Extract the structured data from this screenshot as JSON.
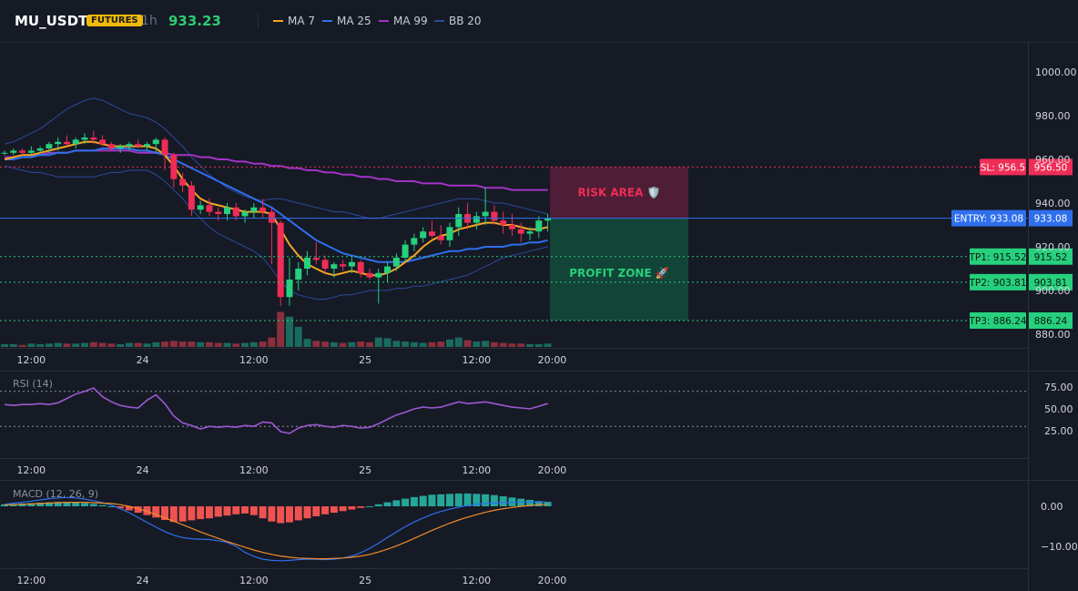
{
  "header": {
    "symbol": "MU_USDT",
    "badge": "FUTURES",
    "timeframe": "1h",
    "last_price": "933.23",
    "legend": [
      {
        "label": "MA 7",
        "color": "#f5a623"
      },
      {
        "label": "MA 25",
        "color": "#2f6fed"
      },
      {
        "label": "MA 99",
        "color": "#a234c4"
      },
      {
        "label": "BB 20",
        "color": "#2b4a9c"
      }
    ]
  },
  "colors": {
    "up": "#26d07c",
    "down": "#ef2d56",
    "vol_up": "#1a6b5e",
    "vol_down": "#8a2f3c",
    "entry": "#2f6fed",
    "sl": "#ef2d56",
    "tp": "#26d07c"
  },
  "levels": {
    "sl": {
      "label": "SL: 956.5",
      "value_text": "956.50"
    },
    "entry": {
      "label": "ENTRY: 933.08",
      "value_text": "933.08"
    },
    "tp1": {
      "label": "TP1: 915.52",
      "value_text": "915.52"
    },
    "tp2": {
      "label": "TP2: 903.81",
      "value_text": "903.81"
    },
    "tp3": {
      "label": "TP3: 886.24",
      "value_text": "886.24"
    }
  },
  "zones": {
    "risk_label": "RISK AREA 🛡️",
    "profit_label": "PROFIT ZONE 🚀"
  },
  "price_axis": [
    "1000.00",
    "980.00",
    "960.00",
    "940.00",
    "920.00",
    "900.00",
    "880.00"
  ],
  "time_axis": [
    "12:00",
    "24",
    "12:00",
    "25",
    "12:00",
    "20:00"
  ],
  "rsi": {
    "label": "RSI (14)",
    "axis": [
      "75.00",
      "50.00",
      "25.00"
    ]
  },
  "macd": {
    "label": "MACD (12, 26, 9)",
    "axis": [
      "0.00",
      "−10.00"
    ]
  },
  "chart_data": [
    {
      "type": "candlestick",
      "title": "MU_USDT 1h",
      "ylim": [
        876,
        1004
      ],
      "x_ticks": [
        "12:00",
        "24",
        "12:00",
        "25",
        "12:00",
        "20:00"
      ],
      "candles": [
        [
          963,
          964,
          962,
          963
        ],
        [
          963,
          965,
          962,
          964
        ],
        [
          964,
          965,
          962,
          963
        ],
        [
          963,
          966,
          962,
          964
        ],
        [
          964,
          966,
          963,
          965
        ],
        [
          965,
          968,
          963,
          967
        ],
        [
          967,
          970,
          964,
          968
        ],
        [
          968,
          971,
          966,
          967
        ],
        [
          967,
          970,
          965,
          969
        ],
        [
          969,
          972,
          967,
          970
        ],
        [
          970,
          973,
          967,
          969
        ],
        [
          969,
          971,
          966,
          967
        ],
        [
          967,
          968,
          964,
          965
        ],
        [
          965,
          967,
          963,
          966
        ],
        [
          966,
          968,
          964,
          967
        ],
        [
          967,
          969,
          965,
          966
        ],
        [
          966,
          968,
          964,
          967
        ],
        [
          967,
          970,
          963,
          969
        ],
        [
          969,
          970,
          955,
          962
        ],
        [
          962,
          963,
          947,
          951
        ],
        [
          951,
          954,
          945,
          948
        ],
        [
          948,
          950,
          934,
          937
        ],
        [
          937,
          941,
          935,
          939
        ],
        [
          939,
          942,
          934,
          936
        ],
        [
          936,
          938,
          932,
          935
        ],
        [
          935,
          940,
          932,
          938
        ],
        [
          938,
          940,
          932,
          934
        ],
        [
          934,
          937,
          931,
          936
        ],
        [
          936,
          940,
          933,
          938
        ],
        [
          938,
          942,
          933,
          936
        ],
        [
          936,
          938,
          912,
          931
        ],
        [
          931,
          932,
          893,
          897
        ],
        [
          897,
          915,
          893,
          905
        ],
        [
          905,
          913,
          900,
          910
        ],
        [
          910,
          918,
          907,
          915
        ],
        [
          915,
          922,
          912,
          914
        ],
        [
          914,
          916,
          908,
          910
        ],
        [
          910,
          913,
          906,
          912
        ],
        [
          912,
          914,
          909,
          911
        ],
        [
          911,
          915,
          908,
          913
        ],
        [
          913,
          914,
          906,
          908
        ],
        [
          908,
          910,
          905,
          906
        ],
        [
          906,
          910,
          894,
          908
        ],
        [
          908,
          913,
          904,
          911
        ],
        [
          911,
          917,
          909,
          915
        ],
        [
          915,
          923,
          913,
          921
        ],
        [
          921,
          926,
          918,
          924
        ],
        [
          924,
          929,
          922,
          927
        ],
        [
          927,
          932,
          924,
          925
        ],
        [
          925,
          930,
          921,
          923
        ],
        [
          923,
          931,
          920,
          929
        ],
        [
          929,
          938,
          925,
          935
        ],
        [
          935,
          940,
          928,
          931
        ],
        [
          931,
          936,
          928,
          934
        ],
        [
          934,
          947,
          930,
          936
        ],
        [
          936,
          939,
          930,
          932
        ],
        [
          932,
          936,
          926,
          930
        ],
        [
          930,
          935,
          925,
          928
        ],
        [
          928,
          931,
          922,
          926
        ],
        [
          926,
          929,
          923,
          927
        ],
        [
          927,
          934,
          924,
          932
        ],
        [
          932,
          935,
          927,
          933
        ]
      ],
      "volumes": [
        4,
        4,
        3,
        5,
        4,
        5,
        6,
        5,
        5,
        6,
        7,
        6,
        5,
        4,
        6,
        6,
        5,
        7,
        8,
        9,
        8,
        8,
        7,
        7,
        6,
        6,
        5,
        6,
        7,
        8,
        14,
        52,
        45,
        30,
        12,
        9,
        8,
        7,
        6,
        7,
        8,
        7,
        14,
        13,
        9,
        8,
        7,
        6,
        7,
        8,
        11,
        14,
        10,
        8,
        9,
        7,
        6,
        5,
        5,
        4,
        4,
        5
      ],
      "ma7": [
        960,
        961,
        962,
        962,
        963,
        964,
        965,
        966,
        967,
        968,
        968,
        967,
        966,
        966,
        966,
        966,
        966,
        965,
        962,
        957,
        951,
        946,
        942,
        940,
        939,
        938,
        937,
        936,
        936,
        936,
        935,
        928,
        921,
        916,
        912,
        910,
        908,
        907,
        908,
        909,
        908,
        907,
        907,
        908,
        910,
        913,
        916,
        920,
        923,
        925,
        926,
        928,
        929,
        930,
        931,
        931,
        930,
        930,
        929,
        928,
        928,
        929
      ],
      "ma25": [
        960,
        960,
        961,
        961,
        962,
        962,
        963,
        963,
        964,
        964,
        964,
        965,
        965,
        965,
        965,
        964,
        964,
        963,
        962,
        960,
        958,
        956,
        954,
        952,
        950,
        948,
        946,
        944,
        942,
        940,
        938,
        935,
        932,
        929,
        926,
        923,
        921,
        919,
        917,
        916,
        915,
        914,
        913,
        913,
        913,
        913,
        914,
        915,
        916,
        917,
        918,
        918,
        919,
        919,
        920,
        920,
        920,
        921,
        921,
        922,
        922,
        923
      ],
      "ma99": [
        961,
        961,
        962,
        962,
        962,
        963,
        963,
        963,
        964,
        964,
        964,
        964,
        964,
        964,
        964,
        963,
        963,
        963,
        963,
        962,
        962,
        962,
        961,
        961,
        960,
        960,
        959,
        959,
        958,
        958,
        957,
        957,
        956,
        956,
        955,
        955,
        954,
        954,
        953,
        953,
        952,
        952,
        951,
        951,
        950,
        950,
        950,
        949,
        949,
        949,
        948,
        948,
        948,
        948,
        947,
        947,
        947,
        946,
        946,
        946,
        946,
        946
      ],
      "bb_upper": [
        967,
        968,
        970,
        972,
        974,
        977,
        980,
        983,
        985,
        987,
        988,
        987,
        985,
        983,
        981,
        980,
        979,
        977,
        974,
        970,
        966,
        961,
        957,
        953,
        950,
        947,
        945,
        943,
        942,
        941,
        942,
        942,
        941,
        940,
        939,
        938,
        937,
        936,
        936,
        935,
        934,
        933,
        933,
        934,
        935,
        936,
        937,
        938,
        939,
        940,
        941,
        942,
        942,
        942,
        941,
        940,
        940,
        939,
        938,
        937,
        936,
        935
      ],
      "bb_lower": [
        957,
        956,
        955,
        954,
        954,
        953,
        952,
        952,
        952,
        952,
        952,
        953,
        954,
        954,
        955,
        955,
        955,
        953,
        950,
        946,
        942,
        937,
        933,
        929,
        926,
        924,
        922,
        920,
        918,
        915,
        910,
        904,
        900,
        898,
        897,
        896,
        896,
        897,
        898,
        898,
        899,
        900,
        900,
        900,
        901,
        901,
        902,
        902,
        903,
        904,
        905,
        906,
        907,
        909,
        911,
        913,
        915,
        916,
        917,
        918,
        919,
        920
      ]
    },
    {
      "type": "line",
      "title": "RSI (14)",
      "ylim": [
        10,
        80
      ],
      "values": [
        55,
        54,
        55,
        55,
        56,
        55,
        57,
        62,
        67,
        70,
        74,
        64,
        58,
        54,
        52,
        51,
        60,
        66,
        56,
        42,
        34,
        31,
        27,
        30,
        29,
        30,
        29,
        31,
        30,
        35,
        34,
        24,
        22,
        28,
        31,
        32,
        30,
        29,
        31,
        30,
        28,
        29,
        33,
        38,
        43,
        46,
        50,
        52,
        51,
        52,
        55,
        58,
        56,
        57,
        58,
        56,
        54,
        52,
        51,
        50,
        53,
        56
      ]
    },
    {
      "type": "bar",
      "title": "MACD (12, 26, 9)",
      "ylim": [
        -16,
        5
      ],
      "histogram": [
        0.5,
        0.6,
        0.7,
        0.8,
        0.9,
        1.0,
        1.1,
        1.0,
        0.9,
        0.8,
        0.6,
        0.3,
        0.0,
        -0.5,
        -1.0,
        -1.6,
        -2.2,
        -2.8,
        -3.4,
        -3.9,
        -3.8,
        -3.5,
        -3.2,
        -3.0,
        -2.6,
        -2.3,
        -2.0,
        -1.8,
        -2.2,
        -3.0,
        -3.8,
        -4.2,
        -4.0,
        -3.5,
        -3.0,
        -2.5,
        -2.0,
        -1.6,
        -1.2,
        -0.8,
        -0.4,
        0.0,
        0.5,
        1.0,
        1.5,
        1.9,
        2.3,
        2.6,
        2.9,
        3.0,
        3.1,
        3.2,
        3.2,
        3.1,
        3.0,
        2.8,
        2.5,
        2.2,
        1.9,
        1.6,
        1.3,
        1.1
      ],
      "macd": [
        0.5,
        0.8,
        1.0,
        1.3,
        1.6,
        1.9,
        2.1,
        2.2,
        2.1,
        1.8,
        1.4,
        0.9,
        0.3,
        -0.6,
        -1.6,
        -2.8,
        -4.0,
        -5.2,
        -6.3,
        -7.2,
        -7.8,
        -8.1,
        -8.2,
        -8.3,
        -8.6,
        -9.0,
        -10.0,
        -11.5,
        -12.5,
        -13.2,
        -13.5,
        -13.6,
        -13.5,
        -13.3,
        -13.2,
        -13.2,
        -13.3,
        -13.2,
        -12.9,
        -12.4,
        -11.6,
        -10.5,
        -9.2,
        -7.8,
        -6.4,
        -5.1,
        -3.9,
        -2.9,
        -2.0,
        -1.3,
        -0.7,
        -0.2,
        0.2,
        0.5,
        0.7,
        0.8,
        0.9,
        1.0,
        1.1,
        1.1,
        1.1,
        1.1
      ],
      "signal": [
        0.3,
        0.4,
        0.5,
        0.6,
        0.7,
        0.8,
        0.9,
        1.0,
        1.0,
        1.0,
        0.9,
        0.8,
        0.7,
        0.4,
        0.0,
        -0.6,
        -1.3,
        -2.1,
        -2.9,
        -3.7,
        -4.6,
        -5.5,
        -6.4,
        -7.2,
        -8.0,
        -8.8,
        -9.5,
        -10.2,
        -10.9,
        -11.5,
        -12.0,
        -12.4,
        -12.7,
        -12.9,
        -13.0,
        -13.1,
        -13.1,
        -13.0,
        -12.9,
        -12.7,
        -12.4,
        -12.0,
        -11.4,
        -10.7,
        -9.9,
        -9.0,
        -8.0,
        -7.0,
        -6.0,
        -5.1,
        -4.2,
        -3.4,
        -2.7,
        -2.1,
        -1.5,
        -1.0,
        -0.6,
        -0.3,
        0.0,
        0.2,
        0.4,
        0.5
      ]
    }
  ]
}
